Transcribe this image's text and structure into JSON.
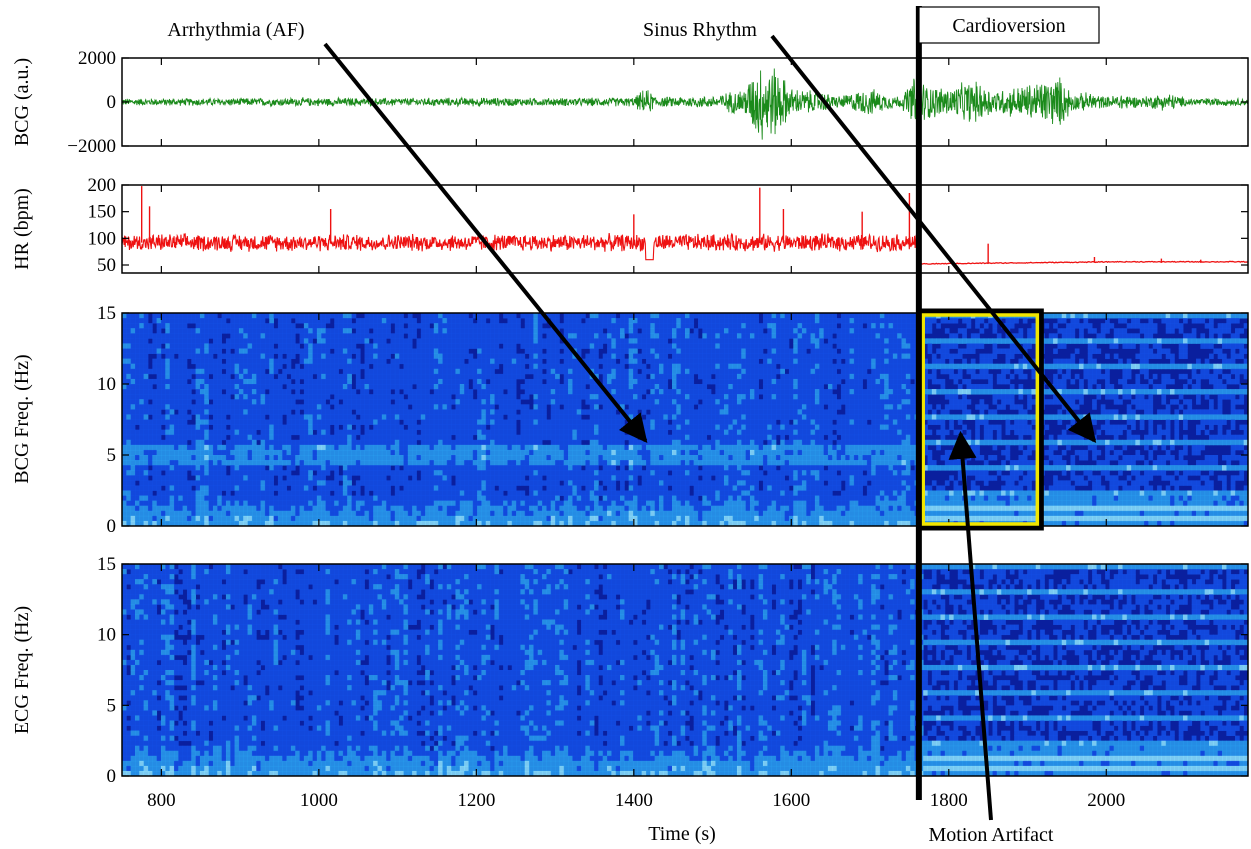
{
  "chart_data": {
    "type": "multi-panel",
    "xlabel": "Time (s)",
    "xlim": [
      750,
      2180
    ],
    "x_ticks": [
      800,
      1000,
      1200,
      1400,
      1600,
      1800,
      2000
    ],
    "x_tick_labels": [
      "800",
      "1000",
      "1200",
      "1400",
      "1600",
      "1800",
      "2000"
    ],
    "panels": [
      {
        "id": "bcg",
        "type": "line",
        "ylabel": "BCG (a.u.)",
        "ylim": [
          -2000,
          2000
        ],
        "y_ticks": [
          -2000,
          0,
          2000
        ],
        "y_tick_labels": [
          "−2000",
          "0",
          "2000"
        ],
        "color": "#1a8a1a",
        "envelope": [
          [
            750,
            180
          ],
          [
            900,
            200
          ],
          [
            1000,
            210
          ],
          [
            1100,
            200
          ],
          [
            1200,
            220
          ],
          [
            1300,
            200
          ],
          [
            1400,
            230
          ],
          [
            1415,
            700
          ],
          [
            1430,
            250
          ],
          [
            1500,
            300
          ],
          [
            1540,
            700
          ],
          [
            1560,
            2000
          ],
          [
            1580,
            1800
          ],
          [
            1600,
            700
          ],
          [
            1640,
            500
          ],
          [
            1660,
            300
          ],
          [
            1700,
            700
          ],
          [
            1720,
            400
          ],
          [
            1740,
            300
          ],
          [
            1760,
            1500
          ],
          [
            1770,
            900
          ],
          [
            1800,
            700
          ],
          [
            1830,
            1100
          ],
          [
            1860,
            600
          ],
          [
            1900,
            900
          ],
          [
            1940,
            1300
          ],
          [
            1960,
            400
          ],
          [
            1980,
            500
          ],
          [
            2000,
            250
          ],
          [
            2020,
            450
          ],
          [
            2040,
            250
          ],
          [
            2080,
            450
          ],
          [
            2100,
            200
          ],
          [
            2180,
            180
          ]
        ]
      },
      {
        "id": "hr",
        "type": "line",
        "ylabel": "HR (bpm)",
        "ylim": [
          35,
          200
        ],
        "y_ticks": [
          50,
          100,
          150,
          200
        ],
        "y_tick_labels": [
          "50",
          "100",
          "150",
          "200"
        ],
        "color": "#ee1111",
        "af_segment": {
          "x": [
            750,
            1762
          ],
          "mean": 92,
          "spread": 15
        },
        "sinus_segment": {
          "x": [
            1762,
            2180
          ],
          "start": 52,
          "end": 56
        },
        "spikes": [
          [
            775,
            198
          ],
          [
            785,
            160
          ],
          [
            1015,
            155
          ],
          [
            1400,
            145
          ],
          [
            1560,
            195
          ],
          [
            1590,
            155
          ],
          [
            1690,
            150
          ],
          [
            1750,
            185
          ],
          [
            1850,
            90
          ],
          [
            1985,
            65
          ],
          [
            2070,
            62
          ],
          [
            2120,
            60
          ]
        ]
      },
      {
        "id": "bcg-spectrogram",
        "type": "heatmap",
        "ylabel": "BCG Freq. (Hz)",
        "ylim": [
          0,
          15
        ],
        "y_ticks": [
          0,
          5,
          10,
          15
        ],
        "y_tick_labels": [
          "0",
          "5",
          "10",
          "15"
        ],
        "colormap": [
          "#0a1f9e",
          "#1450e6",
          "#2aa0f0",
          "#8ee8ff"
        ]
      },
      {
        "id": "ecg-spectrogram",
        "type": "heatmap",
        "ylabel": "ECG Freq. (Hz)",
        "ylim": [
          0,
          15
        ],
        "y_ticks": [
          0,
          5,
          10,
          15
        ],
        "y_tick_labels": [
          "0",
          "5",
          "10",
          "15"
        ],
        "colormap": [
          "#0a1f9e",
          "#1450e6",
          "#2aa0f0",
          "#8ee8ff"
        ]
      }
    ],
    "cardioversion_time": 1762,
    "motion_artifact_box": {
      "x": [
        1765,
        1915
      ],
      "y": [
        0,
        15
      ],
      "outer_color": "#000000",
      "inner_color": "#f2e600"
    },
    "annotations": [
      {
        "text": "Arrhythmia (AF)",
        "arrow_to": {
          "panel": "bcg-spectrogram",
          "x": 1415,
          "y": 6
        }
      },
      {
        "text": "Sinus Rhythm",
        "arrow_to": {
          "panel": "bcg-spectrogram",
          "x": 1985,
          "y": 6
        }
      },
      {
        "text": "Cardioversion",
        "boxed": true
      },
      {
        "text": "Motion Artifact",
        "arrow_to": {
          "panel": "bcg-spectrogram",
          "x": 1815,
          "y": 6.5
        }
      }
    ]
  }
}
